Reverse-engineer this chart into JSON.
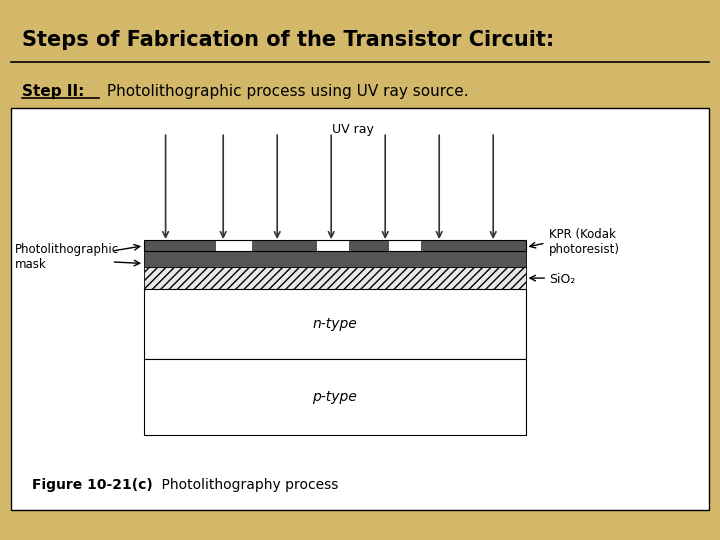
{
  "bg_color": "#d4b86a",
  "title": "Steps of Fabrication of the Transistor Circuit:",
  "step_label_bold": "Step II:",
  "step_label_rest": " Photolithographic process using UV ray source.",
  "figure_bg": "#ffffff",
  "figure_label_bold": "Figure 10-21(c)",
  "figure_label_rest": "    Photolithography process",
  "uv_label": "UV ray",
  "kpr_label": "KPR (Kodak\nphotoresist)",
  "sio2_label": "SiO₂",
  "mask_label": "Photolithographic\nmask",
  "ntype_label": "n-type",
  "ptype_label": "p-type",
  "arrow_color": "#333333",
  "dark_gray": "#555555",
  "hatch_color": "#888888",
  "light_gray": "#cccccc"
}
